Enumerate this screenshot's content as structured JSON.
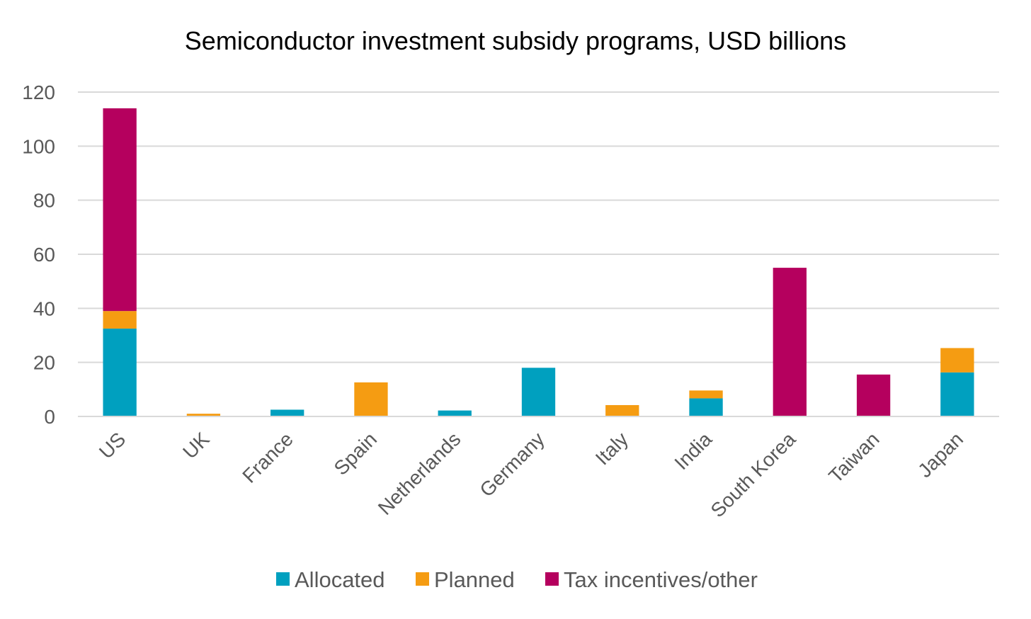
{
  "chart_data": {
    "type": "bar",
    "stacked": true,
    "title": "Semiconductor investment subsidy programs, USD billions",
    "xlabel": "",
    "ylabel": "",
    "ylim": [
      0,
      120
    ],
    "yticks": [
      0,
      20,
      40,
      60,
      80,
      100,
      120
    ],
    "ytick_labels": [
      "0",
      "20",
      "40",
      "60",
      "80",
      "100",
      "120"
    ],
    "grid": true,
    "legend_position": "bottom",
    "categories": [
      "US",
      "UK",
      "France",
      "Spain",
      "Netherlands",
      "Germany",
      "Italy",
      "India",
      "South Korea",
      "Taiwan",
      "Japan"
    ],
    "series": [
      {
        "name": "Allocated",
        "color": "#00a0bf",
        "values": [
          32.5,
          0,
          2.5,
          0,
          2.2,
          18,
          0,
          6.7,
          0,
          0,
          16.3
        ]
      },
      {
        "name": "Planned",
        "color": "#f59c12",
        "values": [
          6.5,
          1.0,
          0,
          12.6,
          0,
          0,
          4.2,
          2.9,
          0,
          0,
          9.0
        ]
      },
      {
        "name": "Tax incentives/other",
        "color": "#b5005e",
        "values": [
          75,
          0,
          0,
          0,
          0,
          0,
          0,
          0,
          55,
          15.5,
          0
        ]
      }
    ]
  }
}
